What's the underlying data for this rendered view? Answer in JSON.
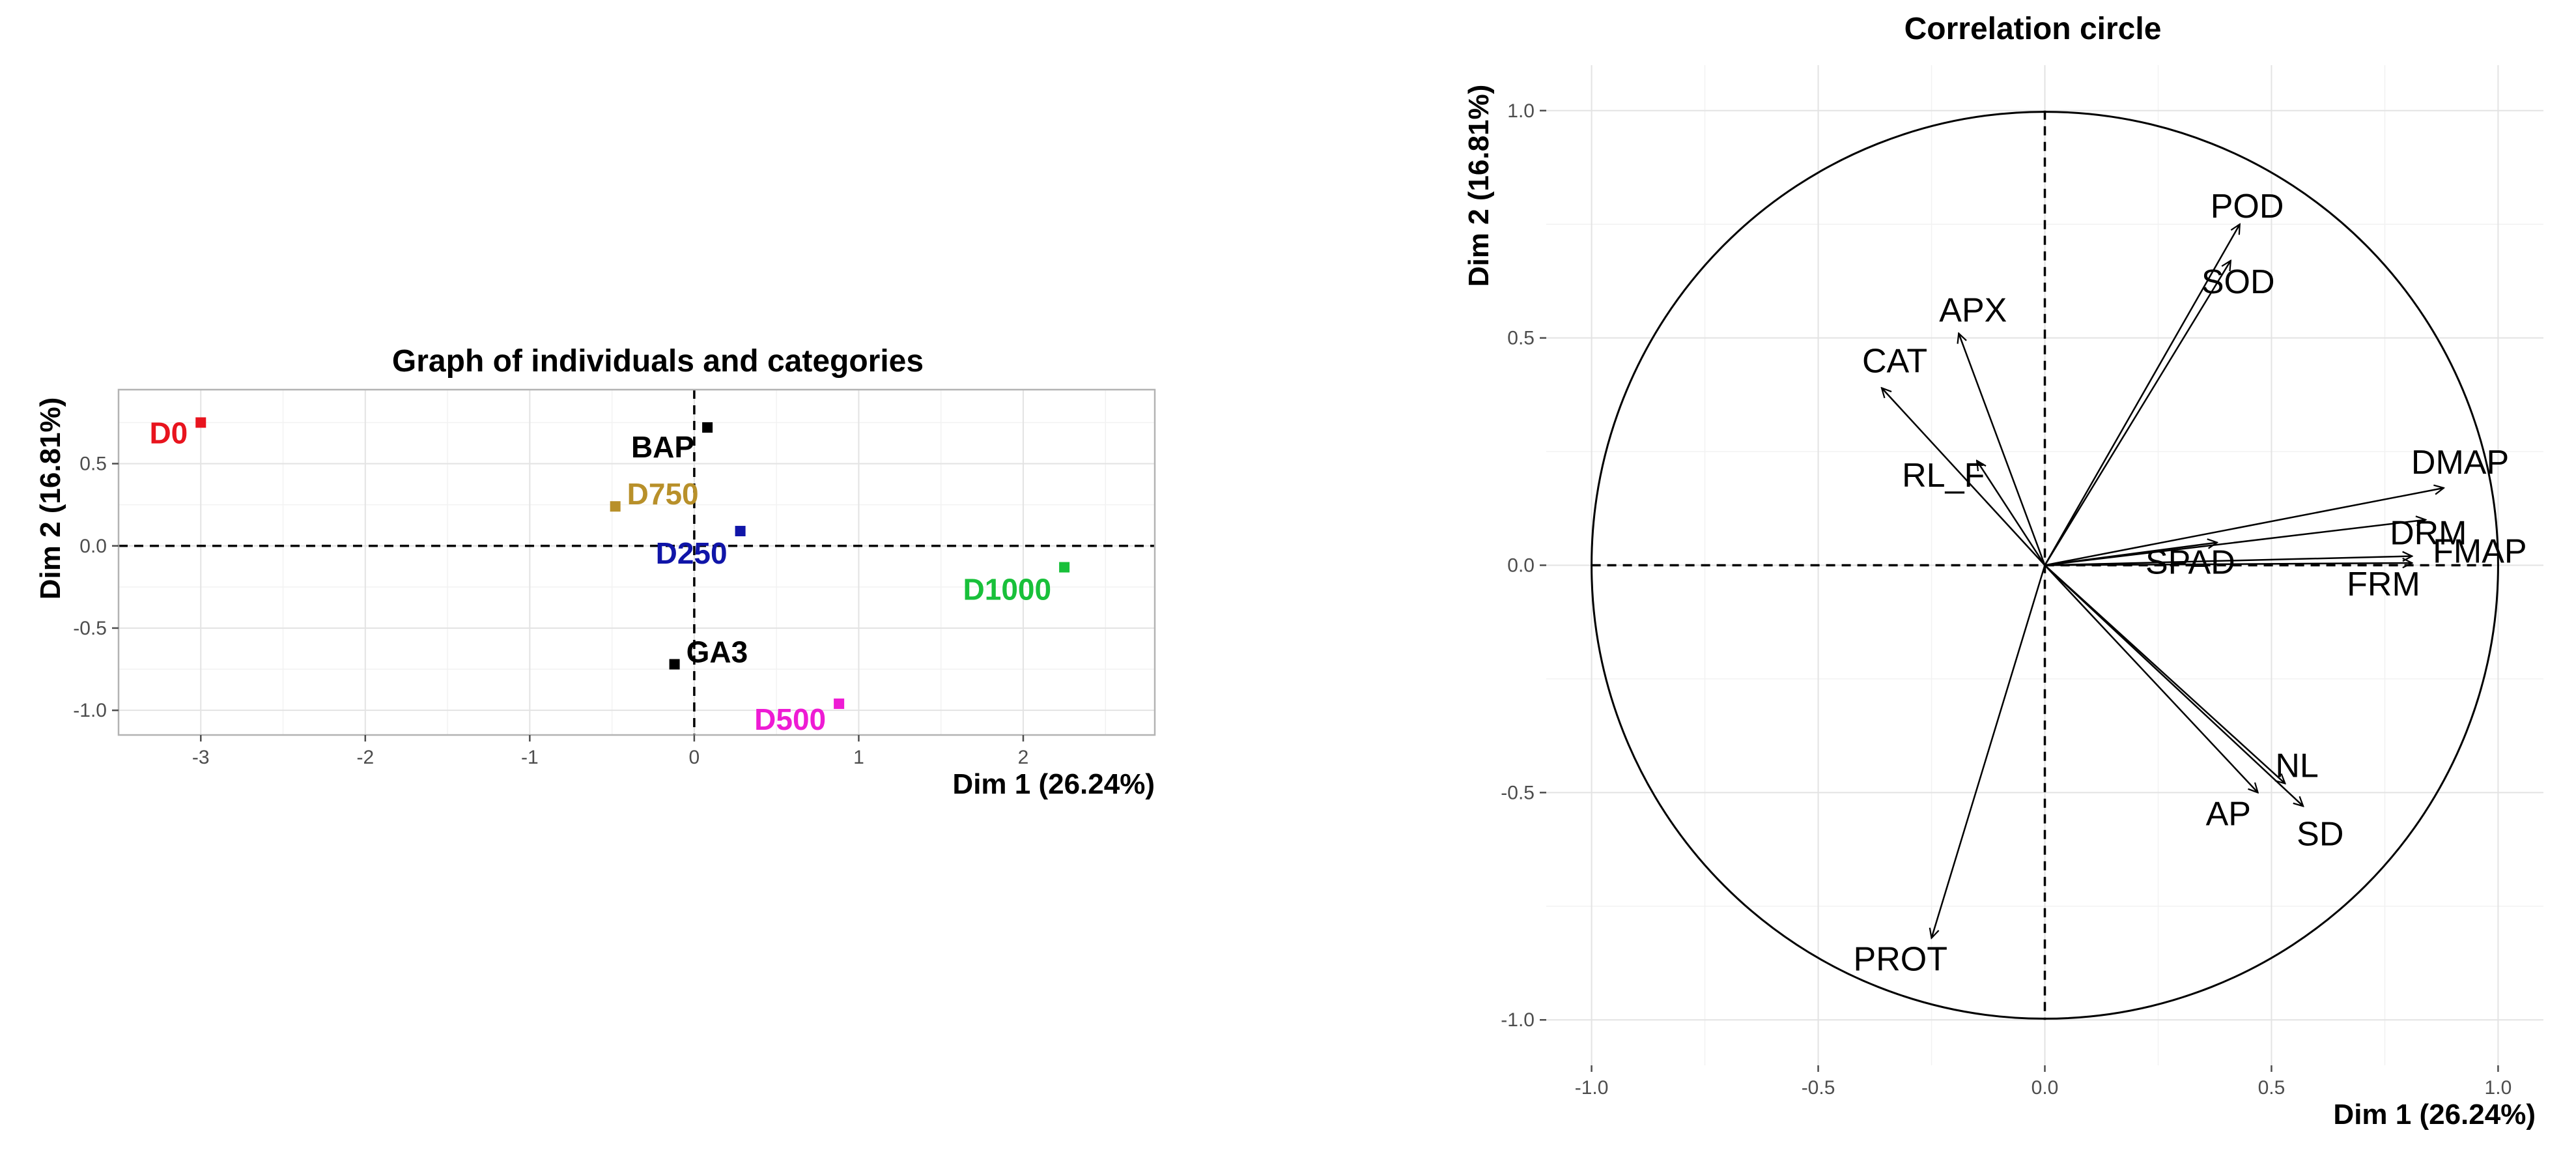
{
  "chart_data": [
    {
      "type": "scatter",
      "title": "Graph of individuals and categories",
      "xlabel": "Dim 1 (26.24%)",
      "ylabel": "Dim 2 (16.81%)",
      "xlim": [
        -3.5,
        2.8
      ],
      "ylim": [
        -1.15,
        0.95
      ],
      "xticks": [
        -3,
        -2,
        -1,
        0,
        1,
        2
      ],
      "yticks": [
        -1.0,
        -0.5,
        0.0,
        0.5
      ],
      "xtick_labels": [
        "-3",
        "-2",
        "-1",
        "0",
        "1",
        "2"
      ],
      "ytick_labels": [
        "-1.0",
        "-0.5",
        "0.0",
        "0.5"
      ],
      "grid": true,
      "points": [
        {
          "label": "D0",
          "x": -3.0,
          "y": 0.75,
          "color": "#e8141e"
        },
        {
          "label": "BAP",
          "x": 0.08,
          "y": 0.72,
          "color": "#000000"
        },
        {
          "label": "D750",
          "x": -0.48,
          "y": 0.24,
          "color": "#b8902a"
        },
        {
          "label": "D250",
          "x": 0.28,
          "y": 0.09,
          "color": "#1015a8"
        },
        {
          "label": "D1000",
          "x": 2.25,
          "y": -0.13,
          "color": "#18c03a"
        },
        {
          "label": "GA3",
          "x": -0.12,
          "y": -0.72,
          "color": "#000000"
        },
        {
          "label": "D500",
          "x": 0.88,
          "y": -0.96,
          "color": "#ee1bd4"
        }
      ]
    },
    {
      "type": "vector",
      "title": "Correlation circle",
      "xlabel": "Dim 1 (26.24%)",
      "ylabel": "Dim 2 (16.81%)",
      "xlim": [
        -1.1,
        1.1
      ],
      "ylim": [
        -1.1,
        1.1
      ],
      "xticks": [
        -1.0,
        -0.5,
        0.0,
        0.5,
        1.0
      ],
      "yticks": [
        -1.0,
        -0.5,
        0.0,
        0.5,
        1.0
      ],
      "xtick_labels": [
        "-1.0",
        "-0.5",
        "0.0",
        "0.5",
        "1.0"
      ],
      "ytick_labels": [
        "-1.0",
        "-0.5",
        "0.0",
        "0.5",
        "1.0"
      ],
      "grid": true,
      "variables": [
        {
          "label": "POD",
          "x": 0.43,
          "y": 0.75
        },
        {
          "label": "SOD",
          "x": 0.41,
          "y": 0.67
        },
        {
          "label": "APX",
          "x": -0.19,
          "y": 0.51
        },
        {
          "label": "CAT",
          "x": -0.36,
          "y": 0.39
        },
        {
          "label": "RL_F",
          "x": -0.15,
          "y": 0.23
        },
        {
          "label": "DMAP",
          "x": 0.88,
          "y": 0.17
        },
        {
          "label": "DRM",
          "x": 0.84,
          "y": 0.1
        },
        {
          "label": "FMAP",
          "x": 0.81,
          "y": 0.02
        },
        {
          "label": "FRM",
          "x": 0.81,
          "y": 0.005
        },
        {
          "label": "SPAD",
          "x": 0.38,
          "y": 0.05
        },
        {
          "label": "NL",
          "x": 0.53,
          "y": -0.48
        },
        {
          "label": "SD",
          "x": 0.57,
          "y": -0.53
        },
        {
          "label": "AP",
          "x": 0.47,
          "y": -0.5
        },
        {
          "label": "PROT",
          "x": -0.25,
          "y": -0.82
        }
      ]
    }
  ]
}
